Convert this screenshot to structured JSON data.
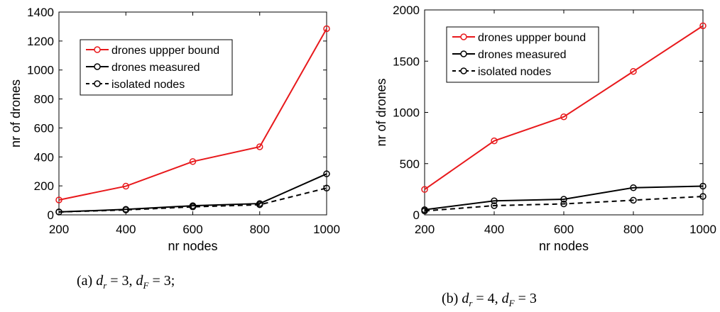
{
  "chart_data": [
    {
      "type": "line",
      "x": [
        200,
        400,
        600,
        800,
        1000
      ],
      "xlabel": "nr nodes",
      "ylabel": "nr of drones",
      "xlim": [
        200,
        1000
      ],
      "ylim": [
        0,
        1400
      ],
      "xticks": [
        "200",
        "400",
        "600",
        "800",
        "1000"
      ],
      "yticks": [
        "0",
        "200",
        "400",
        "600",
        "800",
        "1000",
        "1200",
        "1400"
      ],
      "grid": false,
      "legend_position": "upper-left",
      "series": [
        {
          "name": "drones uppper bound",
          "values": [
            103,
            198,
            368,
            470,
            1285
          ],
          "color": "#e8191c",
          "style": "solid"
        },
        {
          "name": "drones measured",
          "values": [
            20,
            38,
            63,
            78,
            283
          ],
          "color": "#000000",
          "style": "solid"
        },
        {
          "name": "isolated nodes",
          "values": [
            20,
            34,
            55,
            70,
            185
          ],
          "color": "#000000",
          "style": "dashed"
        }
      ]
    },
    {
      "type": "line",
      "x": [
        200,
        400,
        600,
        800,
        1000
      ],
      "xlabel": "nr nodes",
      "ylabel": "nr of drones",
      "xlim": [
        200,
        1000
      ],
      "ylim": [
        0,
        2000
      ],
      "xticks": [
        "200",
        "400",
        "600",
        "800",
        "1000"
      ],
      "yticks": [
        "0",
        "500",
        "1000",
        "1500",
        "2000"
      ],
      "grid": false,
      "legend_position": "upper-left",
      "series": [
        {
          "name": "drones uppper bound",
          "values": [
            248,
            722,
            957,
            1400,
            1845
          ],
          "color": "#e8191c",
          "style": "solid"
        },
        {
          "name": "drones measured",
          "values": [
            50,
            137,
            152,
            265,
            280
          ],
          "color": "#000000",
          "style": "solid"
        },
        {
          "name": "isolated nodes",
          "values": [
            38,
            90,
            107,
            143,
            180
          ],
          "color": "#000000",
          "style": "dashed"
        }
      ]
    }
  ],
  "captions": {
    "a": {
      "prefix": "(a)",
      "dr_value": "3,",
      "df_value": "3;"
    },
    "b": {
      "prefix": "(b)",
      "dr_value": "4,",
      "df_value": "3"
    }
  },
  "caption_symbols": {
    "d": "d",
    "sub_r": "r",
    "sub_f": "F",
    "eq": "="
  }
}
